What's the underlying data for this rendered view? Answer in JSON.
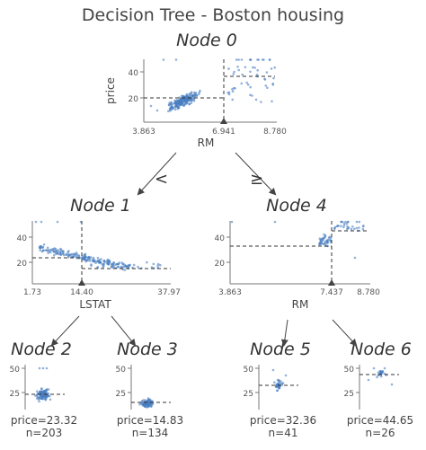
{
  "title": "Decision Tree - Boston housing",
  "nodes": {
    "n0": {
      "label": "Node 0",
      "feature": "RM",
      "target": "price",
      "split": "6.941",
      "xmin": "3.863",
      "xmax": "8.780",
      "yticks": [
        "20",
        "40"
      ],
      "left_mean": 20,
      "right_mean": 37
    },
    "n1": {
      "label": "Node 1",
      "feature": "LSTAT",
      "split": "14.40",
      "xmin": "1.73",
      "xmax": "37.97",
      "yticks": [
        "20",
        "40"
      ],
      "left_mean": 23,
      "right_mean": 15
    },
    "n4": {
      "label": "Node 4",
      "feature": "RM",
      "split": "7.437",
      "xmin": "3.863",
      "xmax": "8.780",
      "yticks": [
        "20",
        "40"
      ],
      "left_mean": 32,
      "right_mean": 45
    },
    "n2": {
      "label": "Node 2",
      "yticks": [
        "25",
        "50"
      ],
      "price": "price=23.32",
      "n": "n=203",
      "mean": 23.32
    },
    "n3": {
      "label": "Node 3",
      "yticks": [
        "25",
        "50"
      ],
      "price": "price=14.83",
      "n": "n=134",
      "mean": 14.83
    },
    "n5": {
      "label": "Node 5",
      "yticks": [
        "25",
        "50"
      ],
      "price": "price=32.36",
      "n": "n=41",
      "mean": 32.36
    },
    "n6": {
      "label": "Node 6",
      "yticks": [
        "25",
        "50"
      ],
      "price": "price=44.65",
      "n": "n=26",
      "mean": 44.65
    }
  },
  "edges": {
    "left": "<",
    "right": "≥"
  },
  "colors": {
    "points": "#4a7fc1",
    "lines": "#444444",
    "axis": "#777777"
  }
}
